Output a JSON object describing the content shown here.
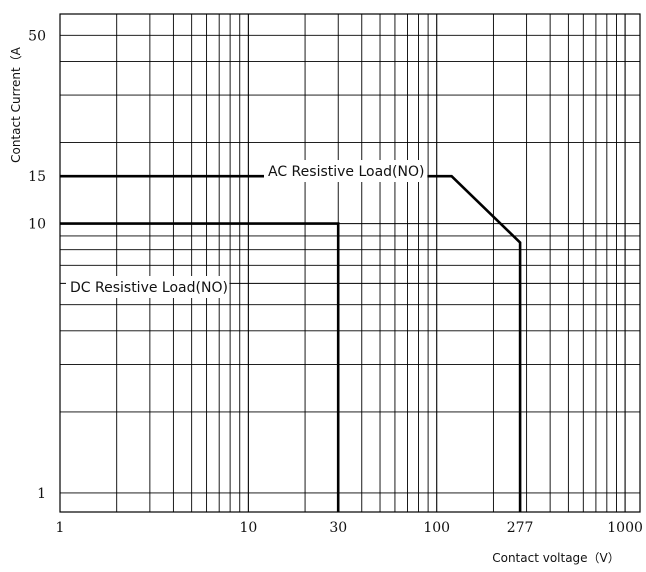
{
  "chart_data": {
    "type": "line",
    "title": "",
    "xlabel": "Contact voltage（V）",
    "ylabel": "Contact Current（A",
    "x_scale": "log",
    "y_scale": "log",
    "xlim": [
      1,
      1200
    ],
    "ylim": [
      0.85,
      60
    ],
    "x_ticks": [
      {
        "value": 1,
        "label": "1"
      },
      {
        "value": 10,
        "label": "10"
      },
      {
        "value": 30,
        "label": "30"
      },
      {
        "value": 100,
        "label": "100"
      },
      {
        "value": 277,
        "label": "277"
      },
      {
        "value": 1000,
        "label": "1000"
      }
    ],
    "y_ticks": [
      {
        "value": 1,
        "label": "1"
      },
      {
        "value": 10,
        "label": "10"
      },
      {
        "value": 15,
        "label": "15"
      },
      {
        "value": 50,
        "label": "50"
      }
    ],
    "grid": true,
    "legend": "none",
    "series": [
      {
        "name": "AC Resistive Load(NO)",
        "points": [
          [
            1,
            15
          ],
          [
            120,
            15
          ],
          [
            277,
            8.5
          ],
          [
            277,
            0.85
          ]
        ]
      },
      {
        "name": "DC Resistive Load(NO)",
        "points": [
          [
            1,
            10
          ],
          [
            30,
            10
          ],
          [
            30,
            0.85
          ]
        ]
      }
    ],
    "colors": {
      "grid": "#000000",
      "series": "#000000"
    }
  }
}
